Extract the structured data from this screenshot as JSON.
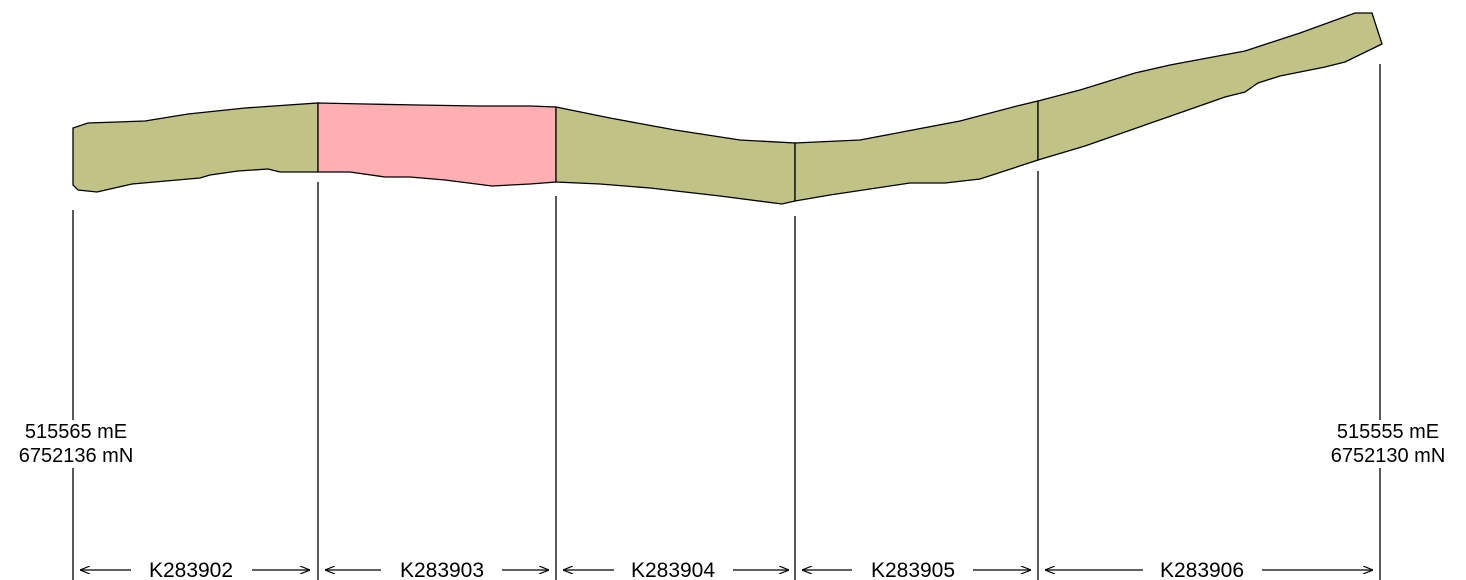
{
  "diagram": {
    "segments": [
      {
        "id": "K283902",
        "fill": "#c1c386"
      },
      {
        "id": "K283903",
        "fill": "#ffafb2"
      },
      {
        "id": "K283904",
        "fill": "#c1c386"
      },
      {
        "id": "K283905",
        "fill": "#c1c386"
      },
      {
        "id": "K283906",
        "fill": "#c1c386"
      }
    ],
    "left_end": {
      "easting": "515565 mE",
      "northing": "6752136 mN"
    },
    "right_end": {
      "easting": "515555 mE",
      "northing": "6752130 mN"
    },
    "colors": {
      "default_fill": "#c1c386",
      "highlight_fill": "#ffafb2",
      "stroke": "#000000"
    }
  }
}
